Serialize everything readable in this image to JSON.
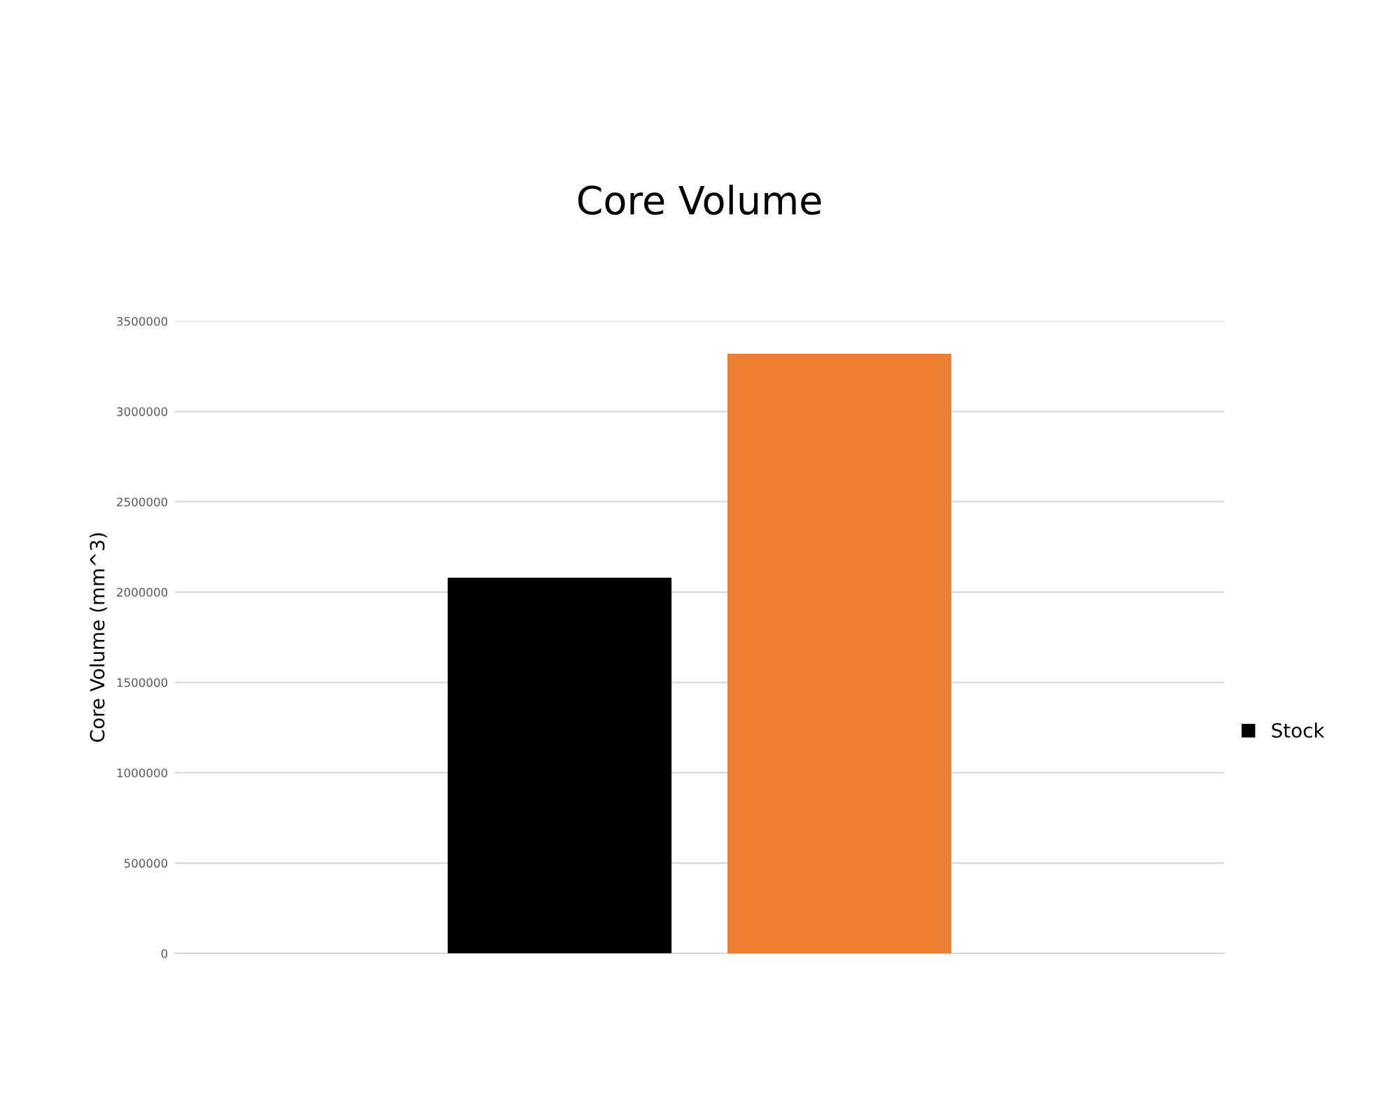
{
  "chart_data": {
    "type": "bar",
    "title": "Core Volume",
    "ylabel": "Core Volume (mm^3)",
    "categories": [
      null
    ],
    "series": [
      {
        "name": "Stock",
        "color": "#000000",
        "values": [
          2080000
        ]
      },
      {
        "color": "#ed7d31",
        "values": [
          3320000
        ]
      }
    ],
    "ylim": [
      0,
      3500000
    ],
    "yticks": [
      0,
      500000,
      1000000,
      1500000,
      2000000,
      2500000,
      3000000,
      3500000
    ],
    "grid": "y",
    "legend": "right"
  }
}
